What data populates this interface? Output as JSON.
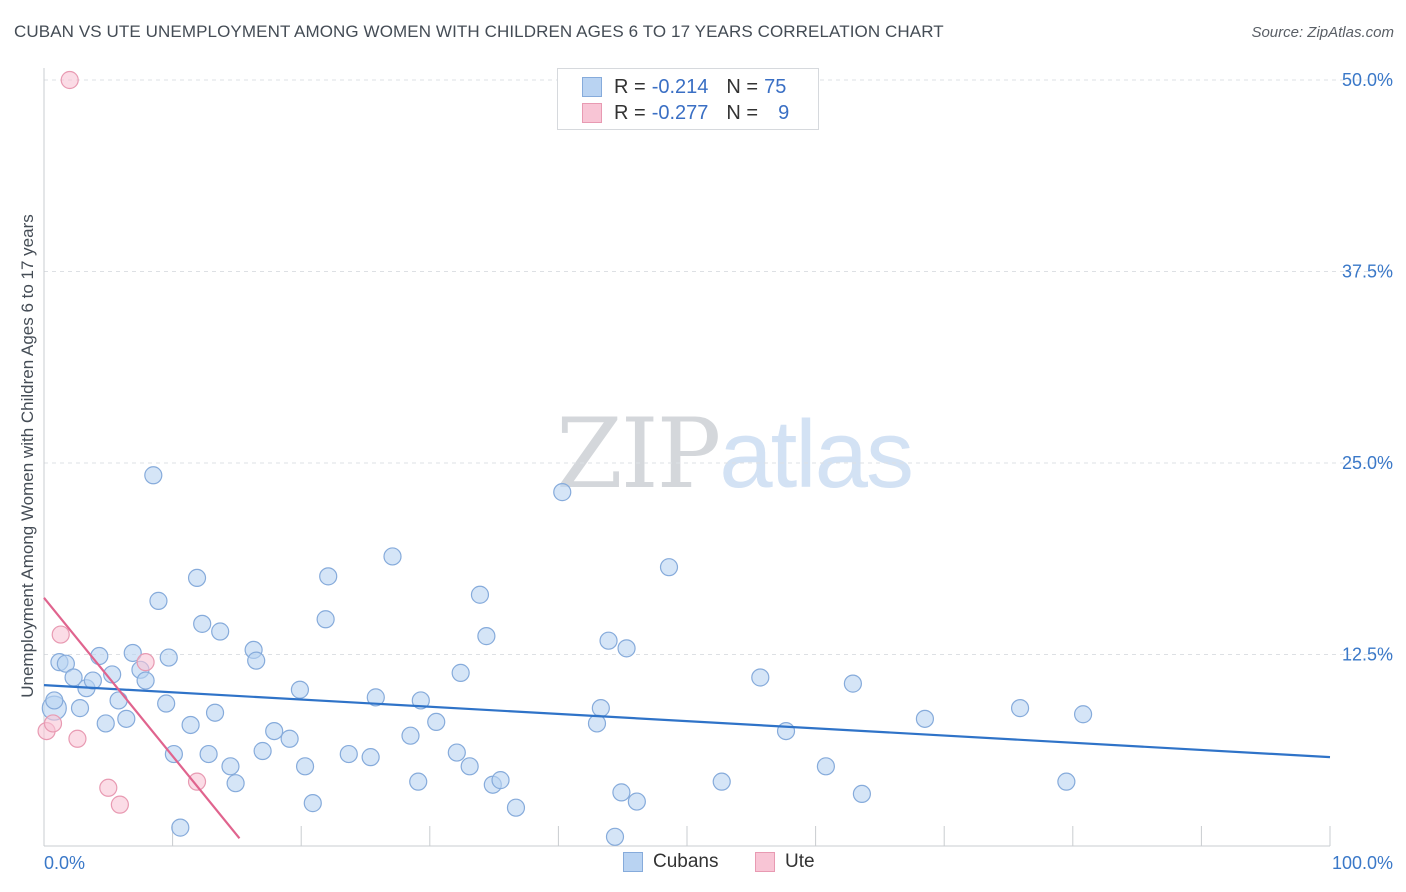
{
  "title": "CUBAN VS UTE UNEMPLOYMENT AMONG WOMEN WITH CHILDREN AGES 6 TO 17 YEARS CORRELATION CHART",
  "source": "Source: ZipAtlas.com",
  "watermark": {
    "part1": "ZIP",
    "part2": "atlas"
  },
  "colors": {
    "cubans_fill": "#b9d3f2",
    "cubans_stroke": "#86abdb",
    "cubans_line": "#2f73c8",
    "ute_fill": "#f8c5d5",
    "ute_stroke": "#e89ab2",
    "ute_line": "#e0648e",
    "axis_label": "#3a78c8",
    "grid": "#dde0e4"
  },
  "legend_top": {
    "rows": [
      {
        "r_label": "R =",
        "r_value": "-0.214",
        "n_label": "N =",
        "n_value": "75"
      },
      {
        "r_label": "R =",
        "r_value": "-0.277",
        "n_label": "N =",
        "n_value": "9"
      }
    ]
  },
  "chart_data": {
    "type": "scatter",
    "title": "CUBAN VS UTE UNEMPLOYMENT AMONG WOMEN WITH CHILDREN AGES 6 TO 17 YEARS CORRELATION CHART",
    "xlabel": "",
    "ylabel": "Unemployment Among Women with Children Ages 6 to 17 years",
    "xlim": [
      0,
      100
    ],
    "ylim": [
      0,
      50
    ],
    "x_tick_labels": [
      {
        "value": 0,
        "label": "0.0%"
      },
      {
        "value": 100,
        "label": "100.0%"
      }
    ],
    "y_tick_labels": [
      {
        "value": 12.5,
        "label": "12.5%"
      },
      {
        "value": 25.0,
        "label": "25.0%"
      },
      {
        "value": 37.5,
        "label": "37.5%"
      },
      {
        "value": 50.0,
        "label": "50.0%"
      }
    ],
    "grid": true,
    "legend_position": "bottom-center",
    "series": [
      {
        "name": "Cubans",
        "trend": {
          "x": [
            0,
            100
          ],
          "y": [
            10.5,
            5.8
          ]
        },
        "points": [
          [
            0.8,
            9.0
          ],
          [
            0.8,
            9.5
          ],
          [
            1.2,
            12.0
          ],
          [
            1.7,
            11.9
          ],
          [
            2.3,
            11.0
          ],
          [
            2.8,
            9.0
          ],
          [
            3.3,
            10.3
          ],
          [
            3.8,
            10.8
          ],
          [
            4.3,
            12.4
          ],
          [
            4.8,
            8.0
          ],
          [
            5.3,
            11.2
          ],
          [
            5.8,
            9.5
          ],
          [
            6.4,
            8.3
          ],
          [
            6.9,
            12.6
          ],
          [
            7.5,
            11.5
          ],
          [
            7.9,
            10.8
          ],
          [
            8.5,
            24.2
          ],
          [
            8.9,
            16.0
          ],
          [
            9.5,
            9.3
          ],
          [
            9.7,
            12.3
          ],
          [
            10.1,
            6.0
          ],
          [
            10.6,
            1.2
          ],
          [
            11.4,
            7.9
          ],
          [
            11.9,
            17.5
          ],
          [
            12.3,
            14.5
          ],
          [
            12.8,
            6.0
          ],
          [
            13.3,
            8.7
          ],
          [
            13.7,
            14.0
          ],
          [
            14.5,
            5.2
          ],
          [
            14.9,
            4.1
          ],
          [
            16.3,
            12.8
          ],
          [
            16.5,
            12.1
          ],
          [
            17.0,
            6.2
          ],
          [
            17.9,
            7.5
          ],
          [
            19.1,
            7.0
          ],
          [
            19.9,
            10.2
          ],
          [
            20.3,
            5.2
          ],
          [
            20.9,
            2.8
          ],
          [
            21.9,
            14.8
          ],
          [
            22.1,
            17.6
          ],
          [
            23.7,
            6.0
          ],
          [
            25.4,
            5.8
          ],
          [
            25.8,
            9.7
          ],
          [
            27.1,
            18.9
          ],
          [
            28.5,
            7.2
          ],
          [
            29.1,
            4.2
          ],
          [
            29.3,
            9.5
          ],
          [
            30.5,
            8.1
          ],
          [
            32.1,
            6.1
          ],
          [
            32.4,
            11.3
          ],
          [
            33.1,
            5.2
          ],
          [
            33.9,
            16.4
          ],
          [
            34.4,
            13.7
          ],
          [
            34.9,
            4.0
          ],
          [
            35.5,
            4.3
          ],
          [
            36.7,
            2.5
          ],
          [
            40.3,
            23.1
          ],
          [
            43.0,
            8.0
          ],
          [
            43.3,
            9.0
          ],
          [
            43.9,
            13.4
          ],
          [
            44.4,
            0.6
          ],
          [
            44.9,
            3.5
          ],
          [
            45.3,
            12.9
          ],
          [
            46.1,
            2.9
          ],
          [
            48.6,
            18.2
          ],
          [
            52.7,
            4.2
          ],
          [
            55.7,
            11.0
          ],
          [
            57.7,
            7.5
          ],
          [
            60.8,
            5.2
          ],
          [
            62.9,
            10.6
          ],
          [
            63.6,
            3.4
          ],
          [
            68.5,
            8.3
          ],
          [
            75.9,
            9.0
          ],
          [
            79.5,
            4.2
          ],
          [
            80.8,
            8.6
          ]
        ]
      },
      {
        "name": "Ute",
        "trend": {
          "x": [
            0,
            15.2
          ],
          "y": [
            16.2,
            0.5
          ]
        },
        "points": [
          [
            2.0,
            50.0
          ],
          [
            0.2,
            7.5
          ],
          [
            0.7,
            8.0
          ],
          [
            1.3,
            13.8
          ],
          [
            2.6,
            7.0
          ],
          [
            5.0,
            3.8
          ],
          [
            5.9,
            2.7
          ],
          [
            7.9,
            12.0
          ],
          [
            11.9,
            4.2
          ]
        ]
      }
    ]
  },
  "legend_bottom": {
    "items": [
      {
        "label": "Cubans"
      },
      {
        "label": "Ute"
      }
    ]
  }
}
